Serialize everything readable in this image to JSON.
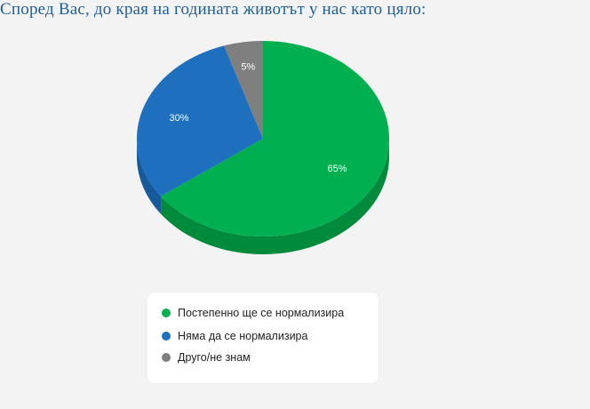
{
  "title": "Според Вас, до края на годината животът у нас като цяло:",
  "chart_data": {
    "type": "pie",
    "categories": [
      "Постепенно ще се нормализира",
      "Няма да се нормализира",
      "Друго/не знам"
    ],
    "values": [
      65,
      30,
      5
    ],
    "labels": [
      "65%",
      "30%",
      "5%"
    ],
    "colors": [
      "#00b050",
      "#1f6fbf",
      "#7f7f7f"
    ],
    "side_colors": [
      "#008a3c",
      "#175a9c",
      "#5f5f5f"
    ],
    "legend_position": "bottom"
  }
}
